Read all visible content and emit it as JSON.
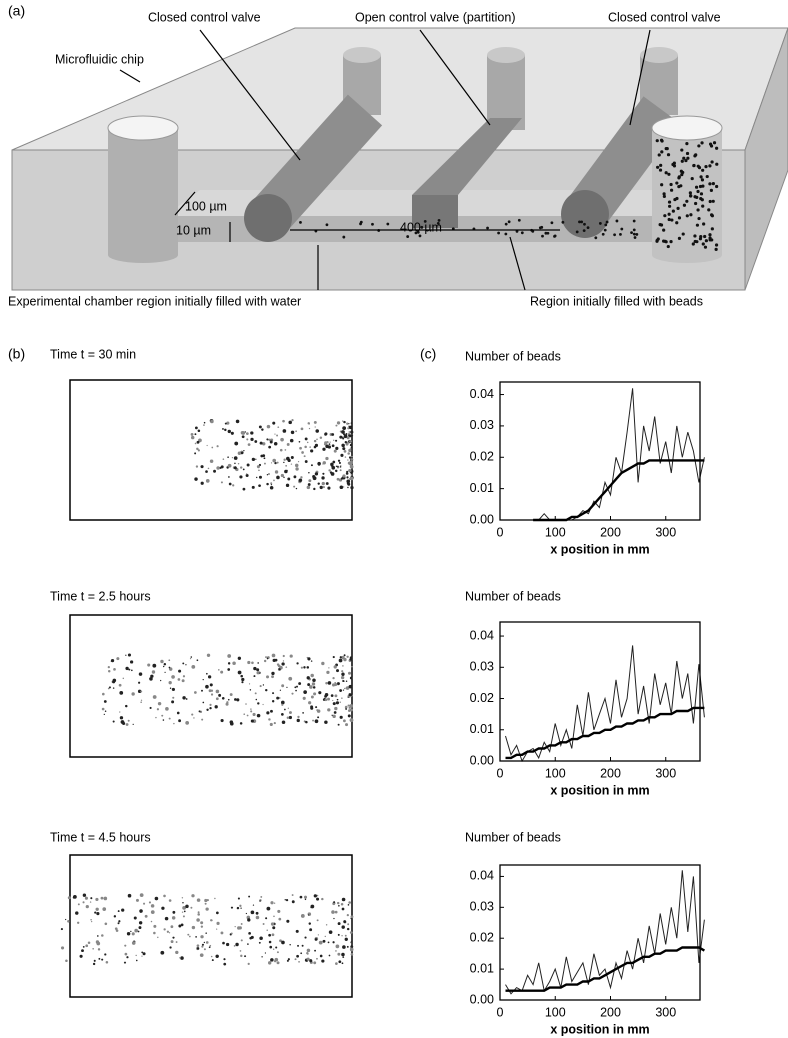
{
  "panel_a": {
    "label": "(a)",
    "valve_left": "Closed  control valve",
    "valve_middle": "Open control valve (partition)",
    "valve_right": "Closed control valve",
    "chip": "Microfluidic chip",
    "width_dim": "100 µm",
    "height_dim": "10 µm",
    "length_dim": "400 µm",
    "water_region": "Experimental chamber region initially filled with water",
    "bead_region": "Region initially filled with beads"
  },
  "panel_b": {
    "label": "(b)",
    "times": [
      "Time t = 30 min",
      "Time t = 2.5 hours",
      "Time t = 4.5 hours"
    ]
  },
  "panel_c": {
    "label": "(c)"
  },
  "chart_data": [
    {
      "type": "line",
      "ylabel": "Number of beads",
      "xlabel": "x position in mm",
      "x": [
        60,
        70,
        80,
        90,
        100,
        110,
        120,
        130,
        140,
        150,
        160,
        170,
        180,
        190,
        200,
        210,
        220,
        230,
        240,
        250,
        260,
        270,
        280,
        290,
        300,
        310,
        320,
        330,
        340,
        350,
        360,
        370
      ],
      "series": [
        {
          "color": "#222222",
          "values": [
            0,
            0,
            0.002,
            0,
            0,
            0,
            0,
            0,
            0.001,
            0.003,
            0.002,
            0.006,
            0.004,
            0.012,
            0.008,
            0.02,
            0.015,
            0.028,
            0.042,
            0.012,
            0.03,
            0.022,
            0.033,
            0.018,
            0.025,
            0.015,
            0.03,
            0.02,
            0.028,
            0.022,
            0.012,
            0.02
          ]
        },
        {
          "color": "#000000",
          "values": [
            0,
            0,
            0,
            0,
            0,
            0,
            0,
            0.001,
            0.001,
            0.002,
            0.003,
            0.005,
            0.007,
            0.009,
            0.011,
            0.013,
            0.015,
            0.016,
            0.017,
            0.018,
            0.018,
            0.019,
            0.019,
            0.019,
            0.019,
            0.019,
            0.019,
            0.019,
            0.019,
            0.019,
            0.019,
            0.019
          ]
        }
      ],
      "xlim": [
        0,
        362
      ],
      "ylim": [
        0,
        0.044
      ],
      "xticks": [
        0,
        100,
        200,
        300
      ],
      "yticks": [
        {
          "value": 0,
          "label": "0.00"
        },
        0.01,
        0.02,
        0.03,
        0.04
      ]
    },
    {
      "type": "line",
      "ylabel": "Number of beads",
      "xlabel": "x position in mm",
      "x": [
        10,
        20,
        30,
        40,
        50,
        60,
        70,
        80,
        90,
        100,
        110,
        120,
        130,
        140,
        150,
        160,
        170,
        180,
        190,
        200,
        210,
        220,
        230,
        240,
        250,
        260,
        270,
        280,
        290,
        300,
        310,
        320,
        330,
        340,
        350,
        360,
        370
      ],
      "series": [
        {
          "color": "#222222",
          "values": [
            0.008,
            0.002,
            0.005,
            0,
            0.003,
            0.004,
            0.001,
            0.006,
            0.003,
            0.012,
            0.005,
            0.01,
            0.004,
            0.018,
            0.008,
            0.022,
            0.01,
            0.015,
            0.02,
            0.012,
            0.026,
            0.014,
            0.02,
            0.037,
            0.015,
            0.024,
            0.012,
            0.028,
            0.018,
            0.025,
            0.015,
            0.032,
            0.02,
            0.028,
            0.012,
            0.031,
            0.014
          ]
        },
        {
          "color": "#000000",
          "values": [
            0.001,
            0.001,
            0.002,
            0.002,
            0.003,
            0.003,
            0.004,
            0.004,
            0.005,
            0.005,
            0.006,
            0.006,
            0.007,
            0.007,
            0.008,
            0.008,
            0.009,
            0.009,
            0.01,
            0.01,
            0.011,
            0.011,
            0.012,
            0.012,
            0.013,
            0.013,
            0.014,
            0.014,
            0.015,
            0.015,
            0.015,
            0.016,
            0.016,
            0.016,
            0.017,
            0.017,
            0.017
          ]
        }
      ],
      "xlim": [
        0,
        362
      ],
      "ylim": [
        0,
        0.0445
      ],
      "xticks": [
        0,
        100,
        200,
        300
      ],
      "yticks": [
        {
          "value": 0,
          "label": "0.00"
        },
        0.01,
        0.02,
        0.03,
        0.04
      ]
    },
    {
      "type": "line",
      "ylabel": "Number of beads",
      "xlabel": "x position in mm",
      "x": [
        10,
        20,
        30,
        40,
        50,
        60,
        70,
        80,
        90,
        100,
        110,
        120,
        130,
        140,
        150,
        160,
        170,
        180,
        190,
        200,
        210,
        220,
        230,
        240,
        250,
        260,
        270,
        280,
        290,
        300,
        310,
        320,
        330,
        340,
        350,
        360,
        370
      ],
      "series": [
        {
          "color": "#222222",
          "values": [
            0.005,
            0.002,
            0.004,
            0.003,
            0.008,
            0.005,
            0.012,
            0.003,
            0.006,
            0.01,
            0.004,
            0.014,
            0.006,
            0.009,
            0.012,
            0.005,
            0.015,
            0.008,
            0.01,
            0.004,
            0.012,
            0.007,
            0.016,
            0.01,
            0.02,
            0.012,
            0.024,
            0.015,
            0.028,
            0.018,
            0.03,
            0.02,
            0.042,
            0.022,
            0.04,
            0.012,
            0.026
          ]
        },
        {
          "color": "#000000",
          "values": [
            0.003,
            0.003,
            0.003,
            0.003,
            0.003,
            0.003,
            0.003,
            0.003,
            0.004,
            0.004,
            0.004,
            0.005,
            0.005,
            0.005,
            0.006,
            0.006,
            0.007,
            0.007,
            0.008,
            0.009,
            0.01,
            0.011,
            0.012,
            0.012,
            0.013,
            0.014,
            0.014,
            0.015,
            0.015,
            0.016,
            0.016,
            0.016,
            0.017,
            0.017,
            0.017,
            0.017,
            0.016
          ]
        }
      ],
      "xlim": [
        0,
        362
      ],
      "ylim": [
        0,
        0.0437
      ],
      "xticks": [
        0,
        100,
        200,
        300
      ],
      "yticks": [
        {
          "value": 0,
          "label": "0.00"
        },
        0.01,
        0.02,
        0.03,
        0.04
      ]
    }
  ]
}
